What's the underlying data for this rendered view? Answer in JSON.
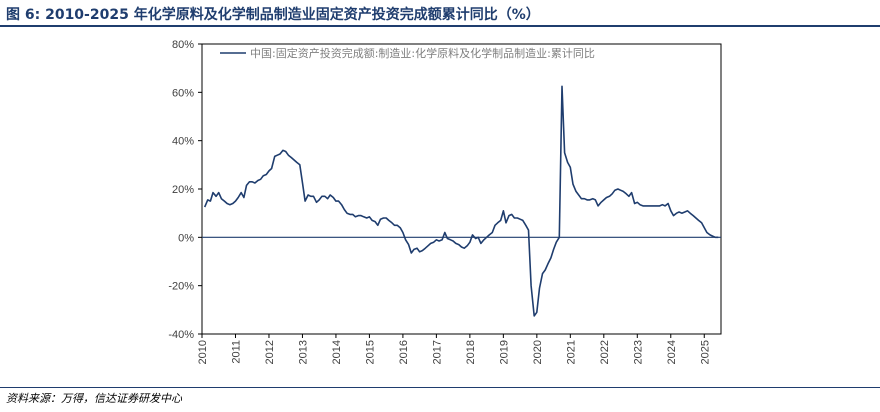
{
  "header": {
    "title": "图 6:  2010-2025 年化学原料及化学制品制造业固定资产投资完成额累计同比（%）"
  },
  "footer": {
    "source": "资料来源：万得，信达证券研发中心"
  },
  "colors": {
    "line": "#1f3d6e",
    "zero_line": "#1f3d6e",
    "frame": "#000000",
    "text": "#404040"
  },
  "chart_data": {
    "type": "line",
    "title": "",
    "xlabel": "",
    "ylabel": "",
    "ylim": [
      -40,
      80
    ],
    "yticks": [
      -40,
      -20,
      0,
      20,
      40,
      60,
      80
    ],
    "ytick_labels": [
      "-40%",
      "-20%",
      "0%",
      "20%",
      "40%",
      "60%",
      "80%"
    ],
    "xlim": [
      2010.0,
      2025.5
    ],
    "xticks": [
      2010,
      2011,
      2012,
      2013,
      2014,
      2015,
      2016,
      2017,
      2018,
      2019,
      2020,
      2021,
      2022,
      2023,
      2024,
      2025
    ],
    "xtick_labels": [
      "2010",
      "2011",
      "2012",
      "2013",
      "2014",
      "2015",
      "2016",
      "2017",
      "2018",
      "2019",
      "2020",
      "2021",
      "2022",
      "2023",
      "2024",
      "2025"
    ],
    "grid": false,
    "legend": {
      "position": "top-left"
    },
    "series": [
      {
        "name": "中国:固定资产投资完成额:制造业:化学原料及化学制品制造业:累计同比",
        "x": [
          2010.08,
          2010.17,
          2010.25,
          2010.33,
          2010.42,
          2010.5,
          2010.58,
          2010.67,
          2010.75,
          2010.83,
          2010.92,
          2011.0,
          2011.08,
          2011.17,
          2011.25,
          2011.33,
          2011.42,
          2011.5,
          2011.58,
          2011.67,
          2011.75,
          2011.83,
          2011.92,
          2012.0,
          2012.08,
          2012.17,
          2012.25,
          2012.33,
          2012.42,
          2012.5,
          2012.58,
          2012.67,
          2012.75,
          2012.83,
          2012.92,
          2013.0,
          2013.08,
          2013.17,
          2013.25,
          2013.33,
          2013.42,
          2013.5,
          2013.58,
          2013.67,
          2013.75,
          2013.83,
          2013.92,
          2014.0,
          2014.08,
          2014.17,
          2014.25,
          2014.33,
          2014.42,
          2014.5,
          2014.58,
          2014.67,
          2014.75,
          2014.83,
          2014.92,
          2015.0,
          2015.08,
          2015.17,
          2015.25,
          2015.33,
          2015.42,
          2015.5,
          2015.58,
          2015.67,
          2015.75,
          2015.83,
          2015.92,
          2016.0,
          2016.08,
          2016.17,
          2016.25,
          2016.33,
          2016.42,
          2016.5,
          2016.58,
          2016.67,
          2016.75,
          2016.83,
          2016.92,
          2017.0,
          2017.08,
          2017.17,
          2017.25,
          2017.33,
          2017.42,
          2017.5,
          2017.58,
          2017.67,
          2017.75,
          2017.83,
          2017.92,
          2018.0,
          2018.08,
          2018.17,
          2018.25,
          2018.33,
          2018.42,
          2018.5,
          2018.58,
          2018.67,
          2018.75,
          2018.83,
          2018.92,
          2019.0,
          2019.08,
          2019.17,
          2019.25,
          2019.33,
          2019.42,
          2019.5,
          2019.58,
          2019.67,
          2019.75,
          2019.83,
          2019.92,
          2020.0,
          2020.08,
          2020.17,
          2020.25,
          2020.33,
          2020.42,
          2020.5,
          2020.58,
          2020.67,
          2020.75,
          2020.83,
          2020.92,
          2021.0,
          2021.08,
          2021.17,
          2021.25,
          2021.33,
          2021.42,
          2021.5,
          2021.58,
          2021.67,
          2021.75,
          2021.83,
          2021.92,
          2022.0,
          2022.08,
          2022.17,
          2022.25,
          2022.33,
          2022.42,
          2022.5,
          2022.58,
          2022.67,
          2022.75,
          2022.83,
          2022.92,
          2023.0,
          2023.08,
          2023.17,
          2023.25,
          2023.33,
          2023.42,
          2023.5,
          2023.58,
          2023.67,
          2023.75,
          2023.83,
          2023.92,
          2024.0,
          2024.08,
          2024.17,
          2024.25,
          2024.33,
          2024.42,
          2024.5,
          2024.58,
          2024.67,
          2024.75,
          2024.83,
          2024.92,
          2025.0,
          2025.08,
          2025.17,
          2025.25,
          2025.33,
          2025.42
        ],
        "values": [
          12.5,
          15.5,
          15,
          18.5,
          17,
          18.5,
          16,
          15,
          14,
          13.5,
          14,
          15,
          16.5,
          18.5,
          16.5,
          21.5,
          23,
          23,
          22.5,
          23.5,
          24,
          25.5,
          26,
          27.5,
          28.5,
          33.5,
          34,
          34.5,
          36,
          35.5,
          34,
          33,
          32,
          31,
          30,
          22.5,
          15,
          17.5,
          17,
          17,
          14.5,
          15.5,
          17,
          17,
          16,
          17.5,
          16.5,
          15,
          15,
          13.5,
          11.5,
          10,
          9.5,
          9.5,
          8.5,
          9,
          9,
          8.5,
          8,
          8.5,
          7,
          6.5,
          5,
          7.5,
          8,
          8,
          7,
          6,
          5,
          5,
          4,
          2,
          -1,
          -3,
          -6.5,
          -5,
          -4.5,
          -6,
          -5.5,
          -4.5,
          -3.5,
          -2.5,
          -2,
          -1,
          -1.5,
          -1,
          2,
          -0.5,
          -1,
          -1.5,
          -2.5,
          -3,
          -4,
          -4.5,
          -3.5,
          -2,
          1,
          -0.5,
          0,
          -2.5,
          -1,
          0,
          1,
          2,
          5,
          6,
          7,
          11,
          6,
          9,
          9.5,
          8,
          8,
          7.5,
          7,
          5,
          3,
          -20,
          -32.5,
          -31,
          -21,
          -15,
          -13.5,
          -11,
          -8.5,
          -5,
          -2,
          0,
          62.5,
          35,
          31,
          29,
          22,
          19,
          17.5,
          16,
          16,
          15.5,
          15.5,
          16,
          15.5,
          13,
          14.5,
          15.5,
          16.5,
          17,
          18,
          19.5,
          20,
          19.5,
          19,
          18,
          17,
          18.5,
          14,
          14.5,
          13.5,
          13,
          13,
          13,
          13,
          13,
          13,
          13,
          13.5,
          13,
          14,
          11,
          9,
          10,
          10.5,
          10,
          10.5,
          11,
          10,
          9,
          8,
          7,
          6,
          4,
          2,
          1,
          0.5,
          0,
          0
        ]
      }
    ]
  }
}
